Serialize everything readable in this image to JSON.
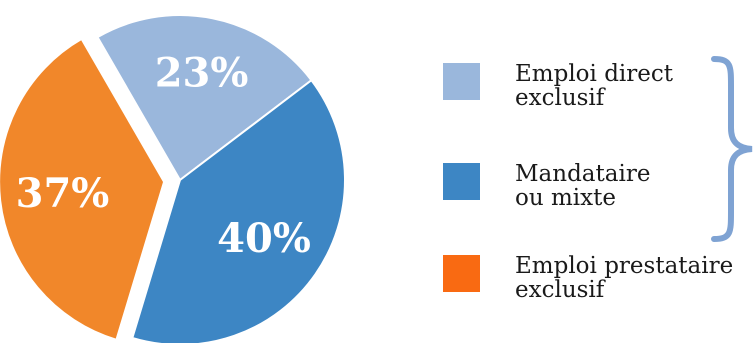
{
  "chart_data": {
    "type": "pie",
    "title": "",
    "slices": [
      {
        "label": "Emploi direct exclusif",
        "value": 23,
        "display": "23%",
        "color": "#9ab7dc",
        "exploded": false
      },
      {
        "label": "Mandataire ou mixte",
        "value": 40,
        "display": "40%",
        "color": "#3d86c4",
        "exploded": false
      },
      {
        "label": "Emploi prestataire exclusif",
        "value": 37,
        "display": "37%",
        "color": "#f1872a",
        "exploded": true
      }
    ],
    "legend": {
      "placement": "right",
      "items": [
        {
          "line1": "Emploi direct",
          "line2": "exclusif",
          "color": "#9ab7dc"
        },
        {
          "line1": "Mandataire",
          "line2": "ou mixte",
          "color": "#3d86c4"
        },
        {
          "line1": "Emploi prestataire",
          "line2": "exclusif",
          "color": "#f96a12"
        }
      ],
      "bracket": {
        "spans": "first two items",
        "color": "#7fa3d3"
      }
    }
  }
}
